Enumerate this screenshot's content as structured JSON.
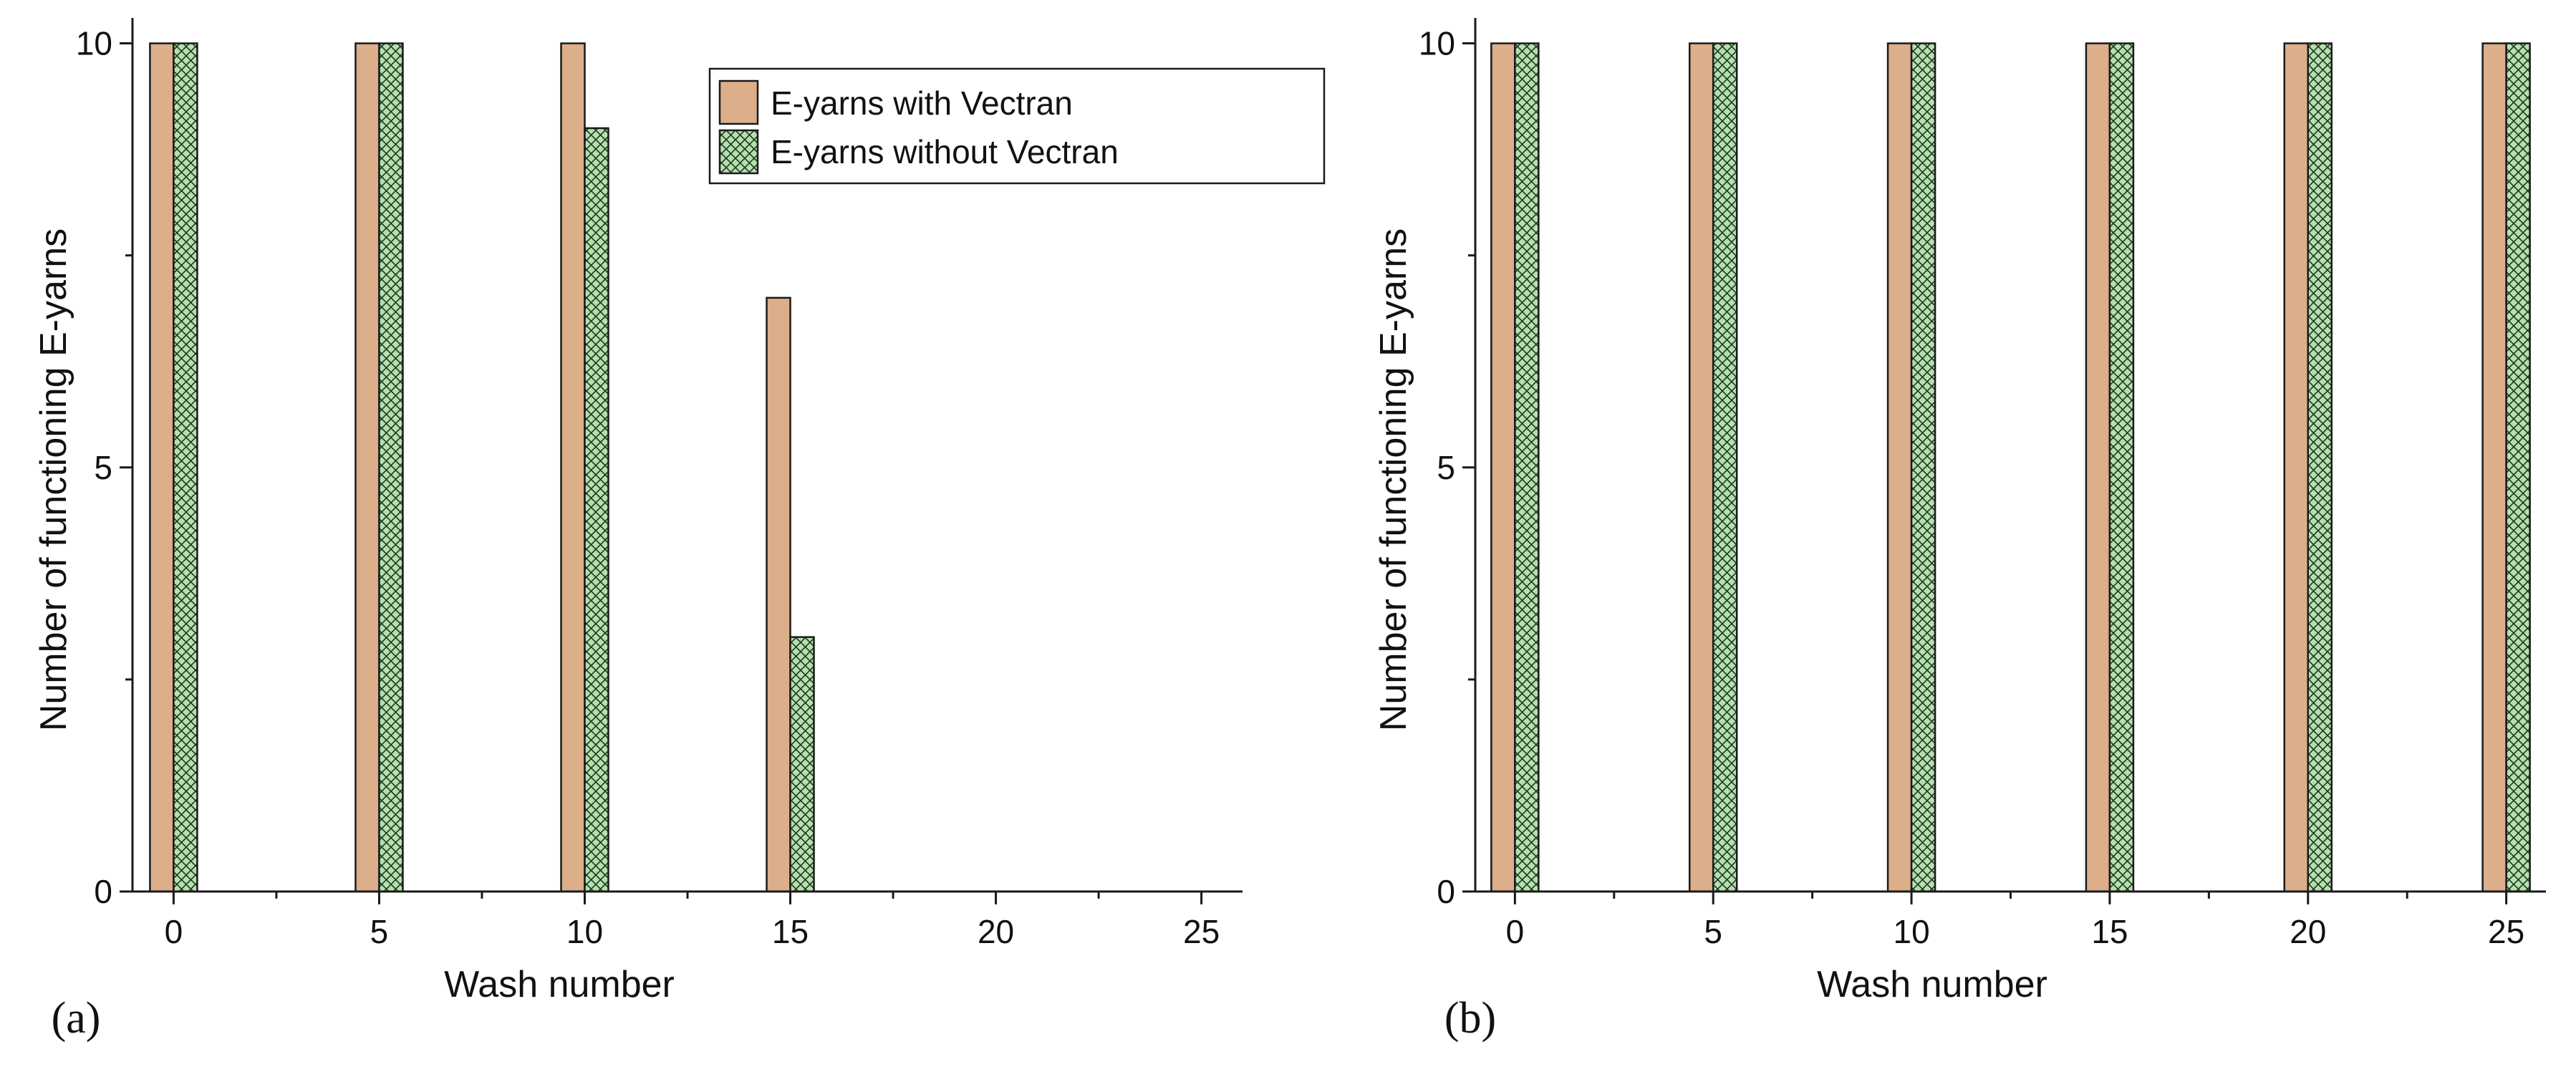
{
  "colors": {
    "with_vectran": "#dcae8a",
    "without_vectran_fill": "#b7deb0",
    "without_vectran_hatch": "#1a3a1a",
    "axis": "#1a1a1a"
  },
  "chart_data": [
    {
      "type": "bar",
      "panel_label": "(a)",
      "xlabel": "Wash number",
      "ylabel": "Number of functioning E-yarns",
      "xlim": [
        -1,
        26
      ],
      "ylim": [
        0,
        10.3
      ],
      "x_ticks": [
        0,
        5,
        10,
        15,
        20,
        25
      ],
      "y_ticks": [
        0,
        5,
        10
      ],
      "legend": {
        "placement": "top-right",
        "entries": [
          "E-yarns with Vectran",
          "E-yarns without Vectran"
        ]
      },
      "x": [
        0,
        5,
        10,
        15
      ],
      "series": [
        {
          "name": "E-yarns with Vectran",
          "values": [
            10,
            10,
            10,
            7
          ]
        },
        {
          "name": "E-yarns without Vectran",
          "values": [
            10,
            10,
            9,
            3
          ]
        }
      ]
    },
    {
      "type": "bar",
      "panel_label": "(b)",
      "xlabel": "Wash number",
      "ylabel": "Number of functioning E-yarns",
      "xlim": [
        -1,
        26
      ],
      "ylim": [
        0,
        10.3
      ],
      "x_ticks": [
        0,
        5,
        10,
        15,
        20,
        25
      ],
      "y_ticks": [
        0,
        5,
        10
      ],
      "x": [
        0,
        5,
        10,
        15,
        20,
        25
      ],
      "series": [
        {
          "name": "E-yarns with Vectran",
          "values": [
            10,
            10,
            10,
            10,
            10,
            10
          ]
        },
        {
          "name": "E-yarns without Vectran",
          "values": [
            10,
            10,
            10,
            10,
            10,
            10
          ]
        }
      ]
    }
  ]
}
